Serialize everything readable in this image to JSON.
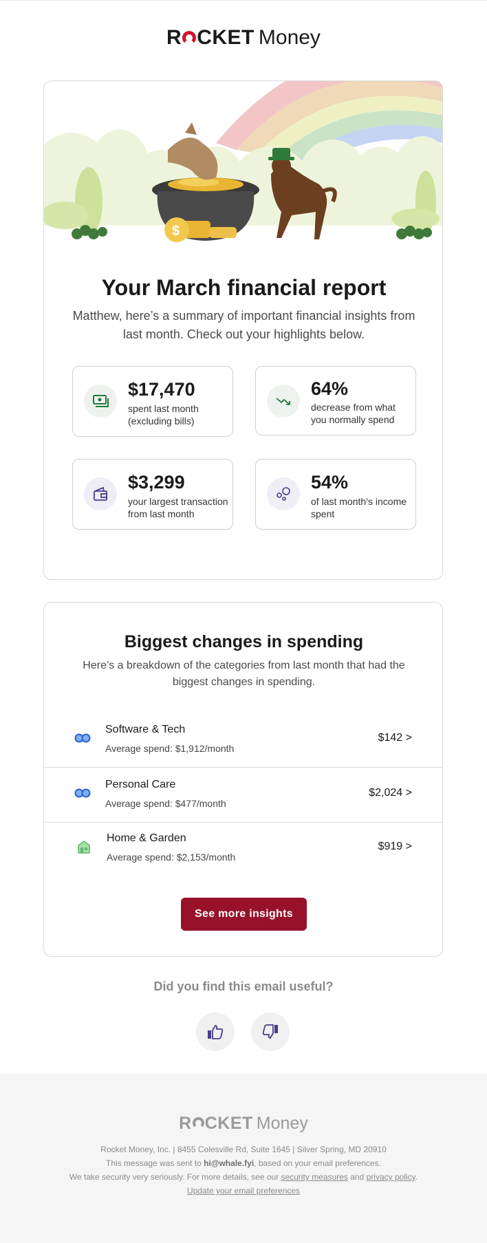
{
  "brand": {
    "logo_word1": "R",
    "logo_word1_rest": "CKET",
    "logo_word2": "Money"
  },
  "report": {
    "title": "Your March financial report",
    "subtitle": "Matthew, here’s a summary of important financial insights from last month. Check out your highlights below.",
    "stats": [
      {
        "value": "$17,470",
        "desc": "spent last month (excluding bills)",
        "icon": "cash-icon"
      },
      {
        "value": "64%",
        "desc": "decrease from what you normally spend",
        "icon": "trend-down-icon"
      },
      {
        "value": "$3,299",
        "desc": "your largest transaction from last month",
        "icon": "wallet-icon"
      },
      {
        "value": "54%",
        "desc": "of last month’s income spent",
        "icon": "bubbles-icon"
      }
    ]
  },
  "changes": {
    "title": "Biggest changes in spending",
    "subtitle": "Here’s a breakdown of the categories from last month that had the biggest changes in spending.",
    "rows": [
      {
        "name": "Software & Tech",
        "avg": "Average spend: $1,912/month",
        "amount": "$142 >",
        "icon": "infinity-icon"
      },
      {
        "name": "Personal Care",
        "avg": "Average spend: $477/month",
        "amount": "$2,024 >",
        "icon": "infinity-icon"
      },
      {
        "name": "Home & Garden",
        "avg": "Average spend: $2,153/month",
        "amount": "$919 >",
        "icon": "house-icon"
      }
    ],
    "cta": "See more insights"
  },
  "feedback": {
    "question": "Did you find this email useful?"
  },
  "footer": {
    "logo_rest": "CKET",
    "logo_money": "Money",
    "address": "Rocket Money, Inc. | 8455 Colesville Rd, Suite 1645 | Silver Spring, MD 20910",
    "sent_prefix": "This message was sent to ",
    "sent_email": "hi@whale.fyi",
    "sent_suffix": ", based on your email preferences.",
    "security_prefix": "We take security very seriously. For more details, see our ",
    "security_link": "security measures",
    "security_and": " and ",
    "privacy_link": "privacy policy",
    "security_end": ".",
    "update_link": "Update your email preferences"
  },
  "colors": {
    "accent": "#97112a",
    "logo_red": "#d0142c",
    "icon_bg_green": "#eef2ee",
    "icon_bg_purple": "#efedf5"
  }
}
